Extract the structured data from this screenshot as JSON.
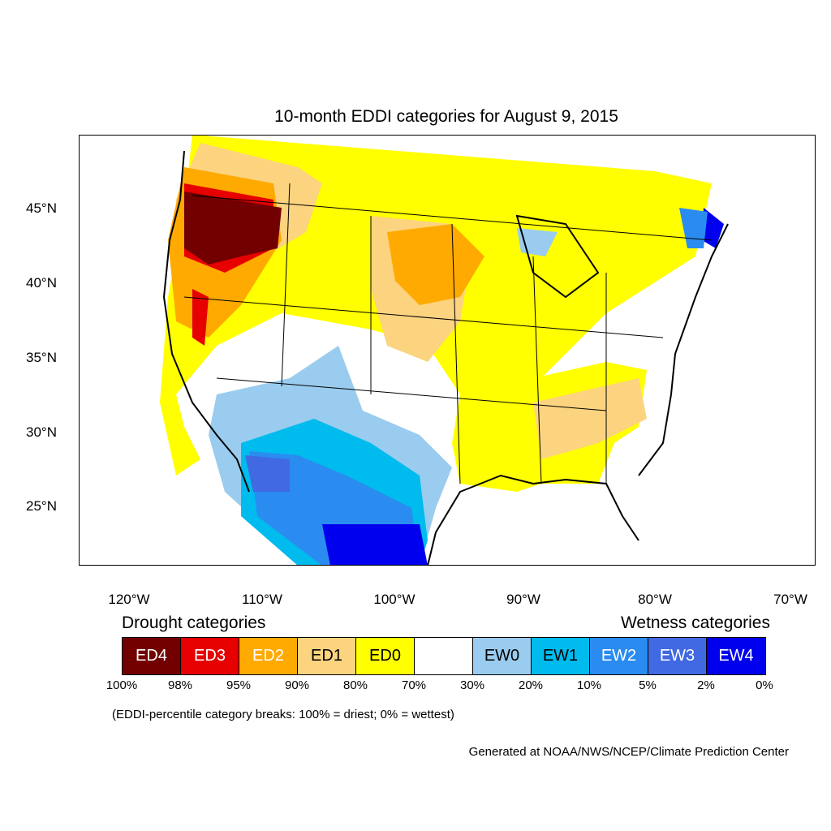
{
  "title": "10-month EDDI categories for August 9, 2015",
  "lat_labels": [
    "45°N",
    "40°N",
    "35°N",
    "30°N",
    "25°N"
  ],
  "lon_labels": [
    "120°W",
    "110°W",
    "100°W",
    "90°W",
    "80°W",
    "70°W"
  ],
  "legend": {
    "drought_heading": "Drought categories",
    "wetness_heading": "Wetness categories",
    "categories": [
      {
        "label": "ED4",
        "color": "#730000",
        "text_color": "#ffffff"
      },
      {
        "label": "ED3",
        "color": "#e60000",
        "text_color": "#ffffff"
      },
      {
        "label": "ED2",
        "color": "#ffaa00",
        "text_color": "#ffffff"
      },
      {
        "label": "ED1",
        "color": "#fcd37f",
        "text_color": "#000000"
      },
      {
        "label": "ED0",
        "color": "#ffff00",
        "text_color": "#000000"
      },
      {
        "label": "",
        "color": "#ffffff",
        "text_color": "#000000"
      },
      {
        "label": "EW0",
        "color": "#99ccee",
        "text_color": "#000000"
      },
      {
        "label": "EW1",
        "color": "#00bbee",
        "text_color": "#000000"
      },
      {
        "label": "EW2",
        "color": "#2a8cf0",
        "text_color": "#ffffff"
      },
      {
        "label": "EW3",
        "color": "#4169e1",
        "text_color": "#ffffff"
      },
      {
        "label": "EW4",
        "color": "#0000ee",
        "text_color": "#ffffff"
      }
    ],
    "breaks": [
      "100%",
      "98%",
      "95%",
      "90%",
      "80%",
      "70%",
      "30%",
      "20%",
      "10%",
      "5%",
      "2%",
      "0%"
    ]
  },
  "note": "(EDDI-percentile category breaks: 100% = driest; 0% = wettest)",
  "credit": "Generated at NOAA/NWS/NCEP/Climate Prediction Center"
}
